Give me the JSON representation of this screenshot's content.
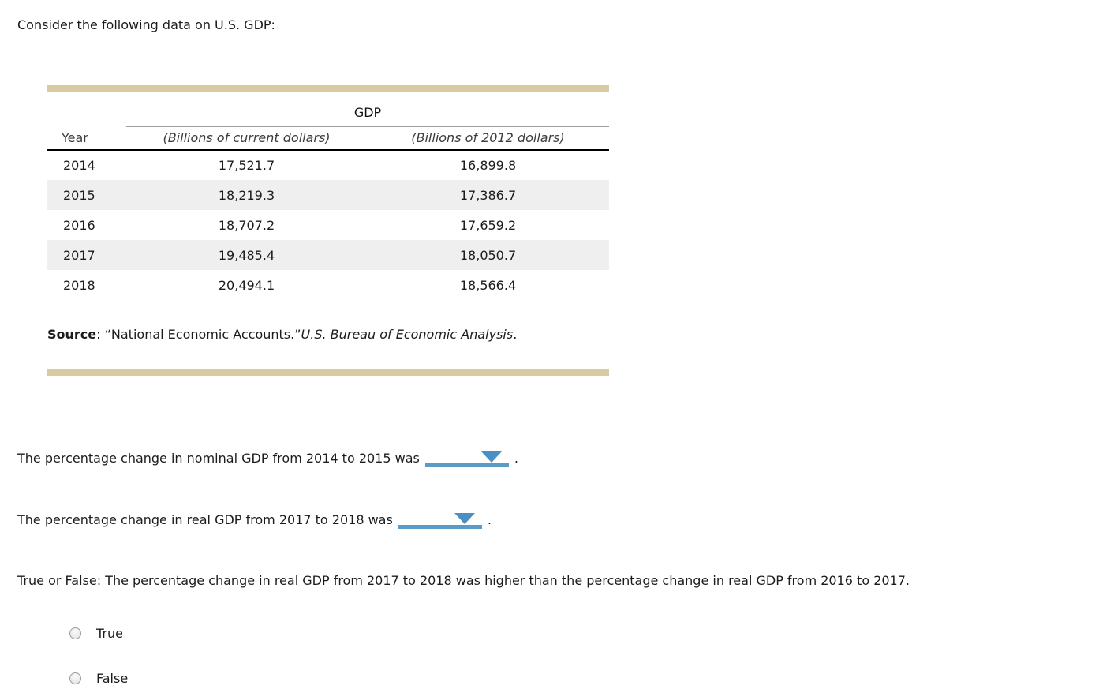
{
  "intro_text": "Consider the following data on U.S. GDP:",
  "table": {
    "group_header": "GDP",
    "col_year": "Year",
    "col_nominal": "(Billions of current dollars)",
    "col_real": "(Billions of 2012 dollars)",
    "rows": [
      [
        "2014",
        "17,521.7",
        "16,899.8"
      ],
      [
        "2015",
        "18,219.3",
        "17,386.7"
      ],
      [
        "2016",
        "18,707.2",
        "17,659.2"
      ],
      [
        "2017",
        "19,485.4",
        "18,050.7"
      ],
      [
        "2018",
        "20,494.1",
        "18,566.4"
      ]
    ],
    "source": {
      "label": "Source",
      "text": ": “National Economic Accounts.”",
      "citation": "U.S. Bureau of Economic Analysis",
      "period": "."
    }
  },
  "questions": [
    {
      "text": "The percentage change in nominal GDP from 2014 to 2015 was",
      "after": "."
    },
    {
      "text": "The percentage change in real GDP from 2017 to 2018 was",
      "after": "."
    }
  ],
  "true_false": {
    "statement": "True or False: The percentage change in real GDP from 2017 to 2018 was higher than the percentage change in real GDP from 2016 to 2017.",
    "option_true": "True",
    "option_false": "False"
  },
  "colors": {
    "divider_tan": "#d8cba1",
    "row_stripe": "#efefef",
    "dropdown_bar_blue": "#5b9bc8",
    "dropdown_triangle_blue": "#4a90c2",
    "header_rule_gray": "#9e9e9e",
    "header_rule_black": "#000000"
  }
}
